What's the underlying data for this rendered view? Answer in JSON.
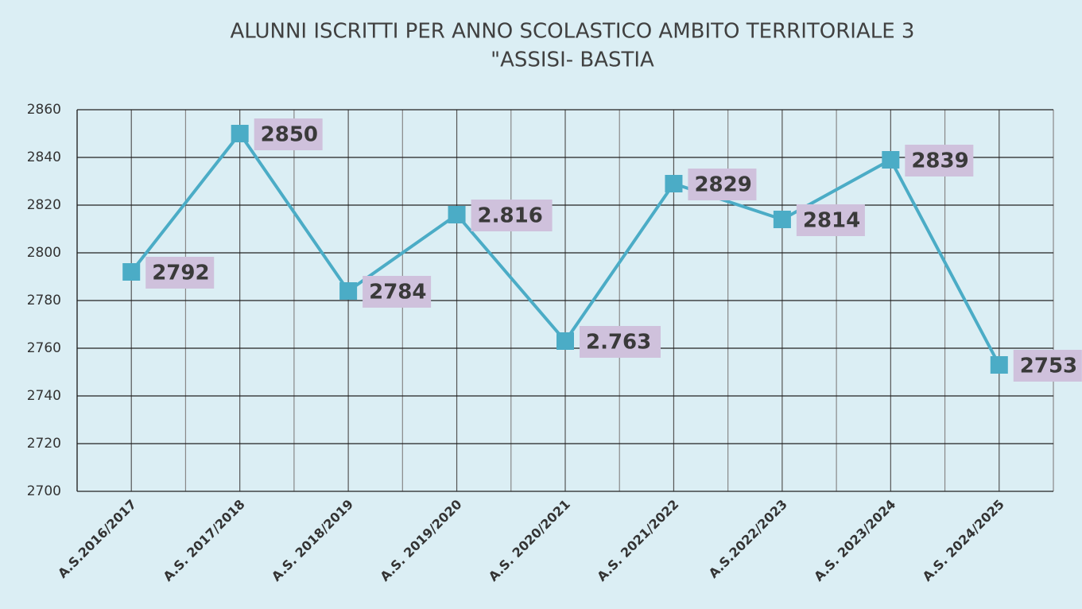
{
  "chart_data": {
    "type": "line",
    "title": [
      "ALUNNI ISCRITTI PER ANNO SCOLASTICO AMBITO TERRITORIALE 3",
      "\"ASSISI- BASTIA"
    ],
    "categories": [
      "A.S.2016/2017",
      "A.S. 2017/2018",
      "A.S. 2018/2019",
      "A.S. 2019/2020",
      "A.S. 2020/2021",
      "A.S. 2021/2022",
      "A.S.2022/2023",
      "A.S. 2023/2024",
      "A.S. 2024/2025"
    ],
    "values": [
      2792,
      2850,
      2784,
      2816,
      2763,
      2829,
      2814,
      2839,
      2753
    ],
    "value_labels": [
      "2792",
      "2850",
      "2784",
      "2.816",
      "2.763",
      "2829",
      "2814",
      "2839",
      "2753"
    ],
    "color": "#4bacc6",
    "ylim": [
      2700,
      2860
    ],
    "yticks": [
      2700,
      2720,
      2740,
      2760,
      2780,
      2800,
      2820,
      2840,
      2860
    ],
    "grid": true
  }
}
